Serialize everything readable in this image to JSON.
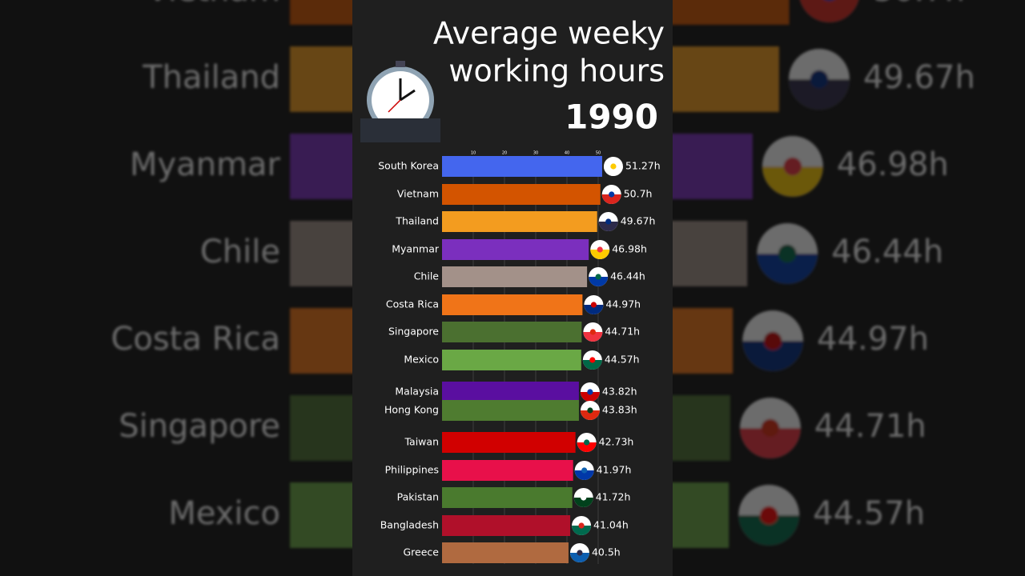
{
  "chart_data": {
    "type": "bar",
    "orientation": "horizontal",
    "title_lines": [
      "Average weeky",
      "working hours"
    ],
    "year": "1990",
    "categories": [
      "South Korea",
      "Vietnam",
      "Thailand",
      "Myanmar",
      "Chile",
      "Costa Rica",
      "Singapore",
      "Mexico",
      "Malaysia",
      "Hong Kong",
      "Taiwan",
      "Philippines",
      "Pakistan",
      "Bangladesh",
      "Greece"
    ],
    "values": [
      51.27,
      50.7,
      49.67,
      46.98,
      46.44,
      44.97,
      44.71,
      44.57,
      43.82,
      43.83,
      42.73,
      41.97,
      41.72,
      41.04,
      40.5
    ],
    "value_labels": [
      "51.27h",
      "50.7h",
      "49.67h",
      "46.98h",
      "46.44h",
      "44.97h",
      "44.71h",
      "44.57h",
      "43.82h",
      "43.83h",
      "42.73h",
      "41.97h",
      "41.72h",
      "41.04h",
      "40.5h"
    ],
    "colors": [
      "#4466ee",
      "#d35400",
      "#f39c1f",
      "#7b2fbe",
      "#a39189",
      "#f07418",
      "#4b7030",
      "#6aa845",
      "#5a0fa0",
      "#4f7c30",
      "#d10000",
      "#e8104a",
      "#4a7a2e",
      "#b0102a",
      "#b06a40"
    ],
    "xlim": [
      0,
      55
    ],
    "xticks": [
      10,
      20,
      30,
      40,
      50
    ],
    "grid": true
  }
}
